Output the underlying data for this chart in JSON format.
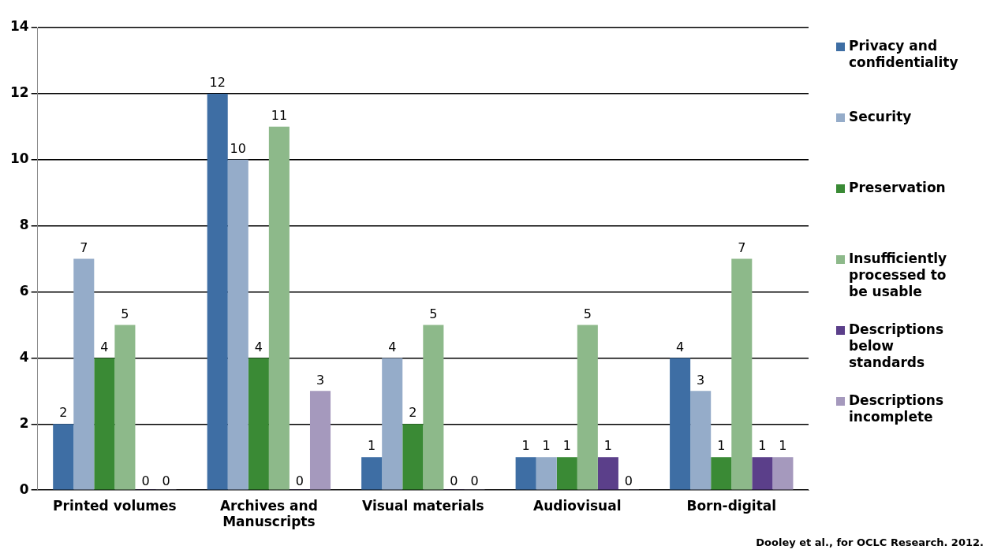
{
  "chart_data": {
    "type": "bar",
    "categories": [
      "Printed volumes",
      "Archives and Manuscripts",
      "Visual materials",
      "Audiovisual",
      "Born-digital"
    ],
    "series": [
      {
        "name": "Privacy and confidentiality",
        "color": "#3e6ea4",
        "values": [
          2,
          12,
          1,
          1,
          4
        ]
      },
      {
        "name": "Security",
        "color": "#95acc9",
        "values": [
          7,
          10,
          4,
          1,
          3
        ]
      },
      {
        "name": "Preservation",
        "color": "#3a8a35",
        "values": [
          4,
          4,
          2,
          1,
          1
        ]
      },
      {
        "name": "Insufficiently processed to be usable",
        "color": "#8db98a",
        "values": [
          5,
          11,
          5,
          5,
          7
        ]
      },
      {
        "name": "Descriptions below standards",
        "color": "#5b3f8a",
        "values": [
          0,
          0,
          0,
          1,
          1
        ]
      },
      {
        "name": "Descriptions incomplete",
        "color": "#a599bd",
        "values": [
          0,
          3,
          0,
          0,
          1
        ]
      }
    ],
    "ylim": [
      0,
      14
    ],
    "yticks": [
      0,
      2,
      4,
      6,
      8,
      10,
      12,
      14
    ],
    "grid": "y",
    "legend": "right",
    "data_labels": true,
    "annotations": [
      "Dooley et al., for OCLC Research. 2012."
    ]
  }
}
